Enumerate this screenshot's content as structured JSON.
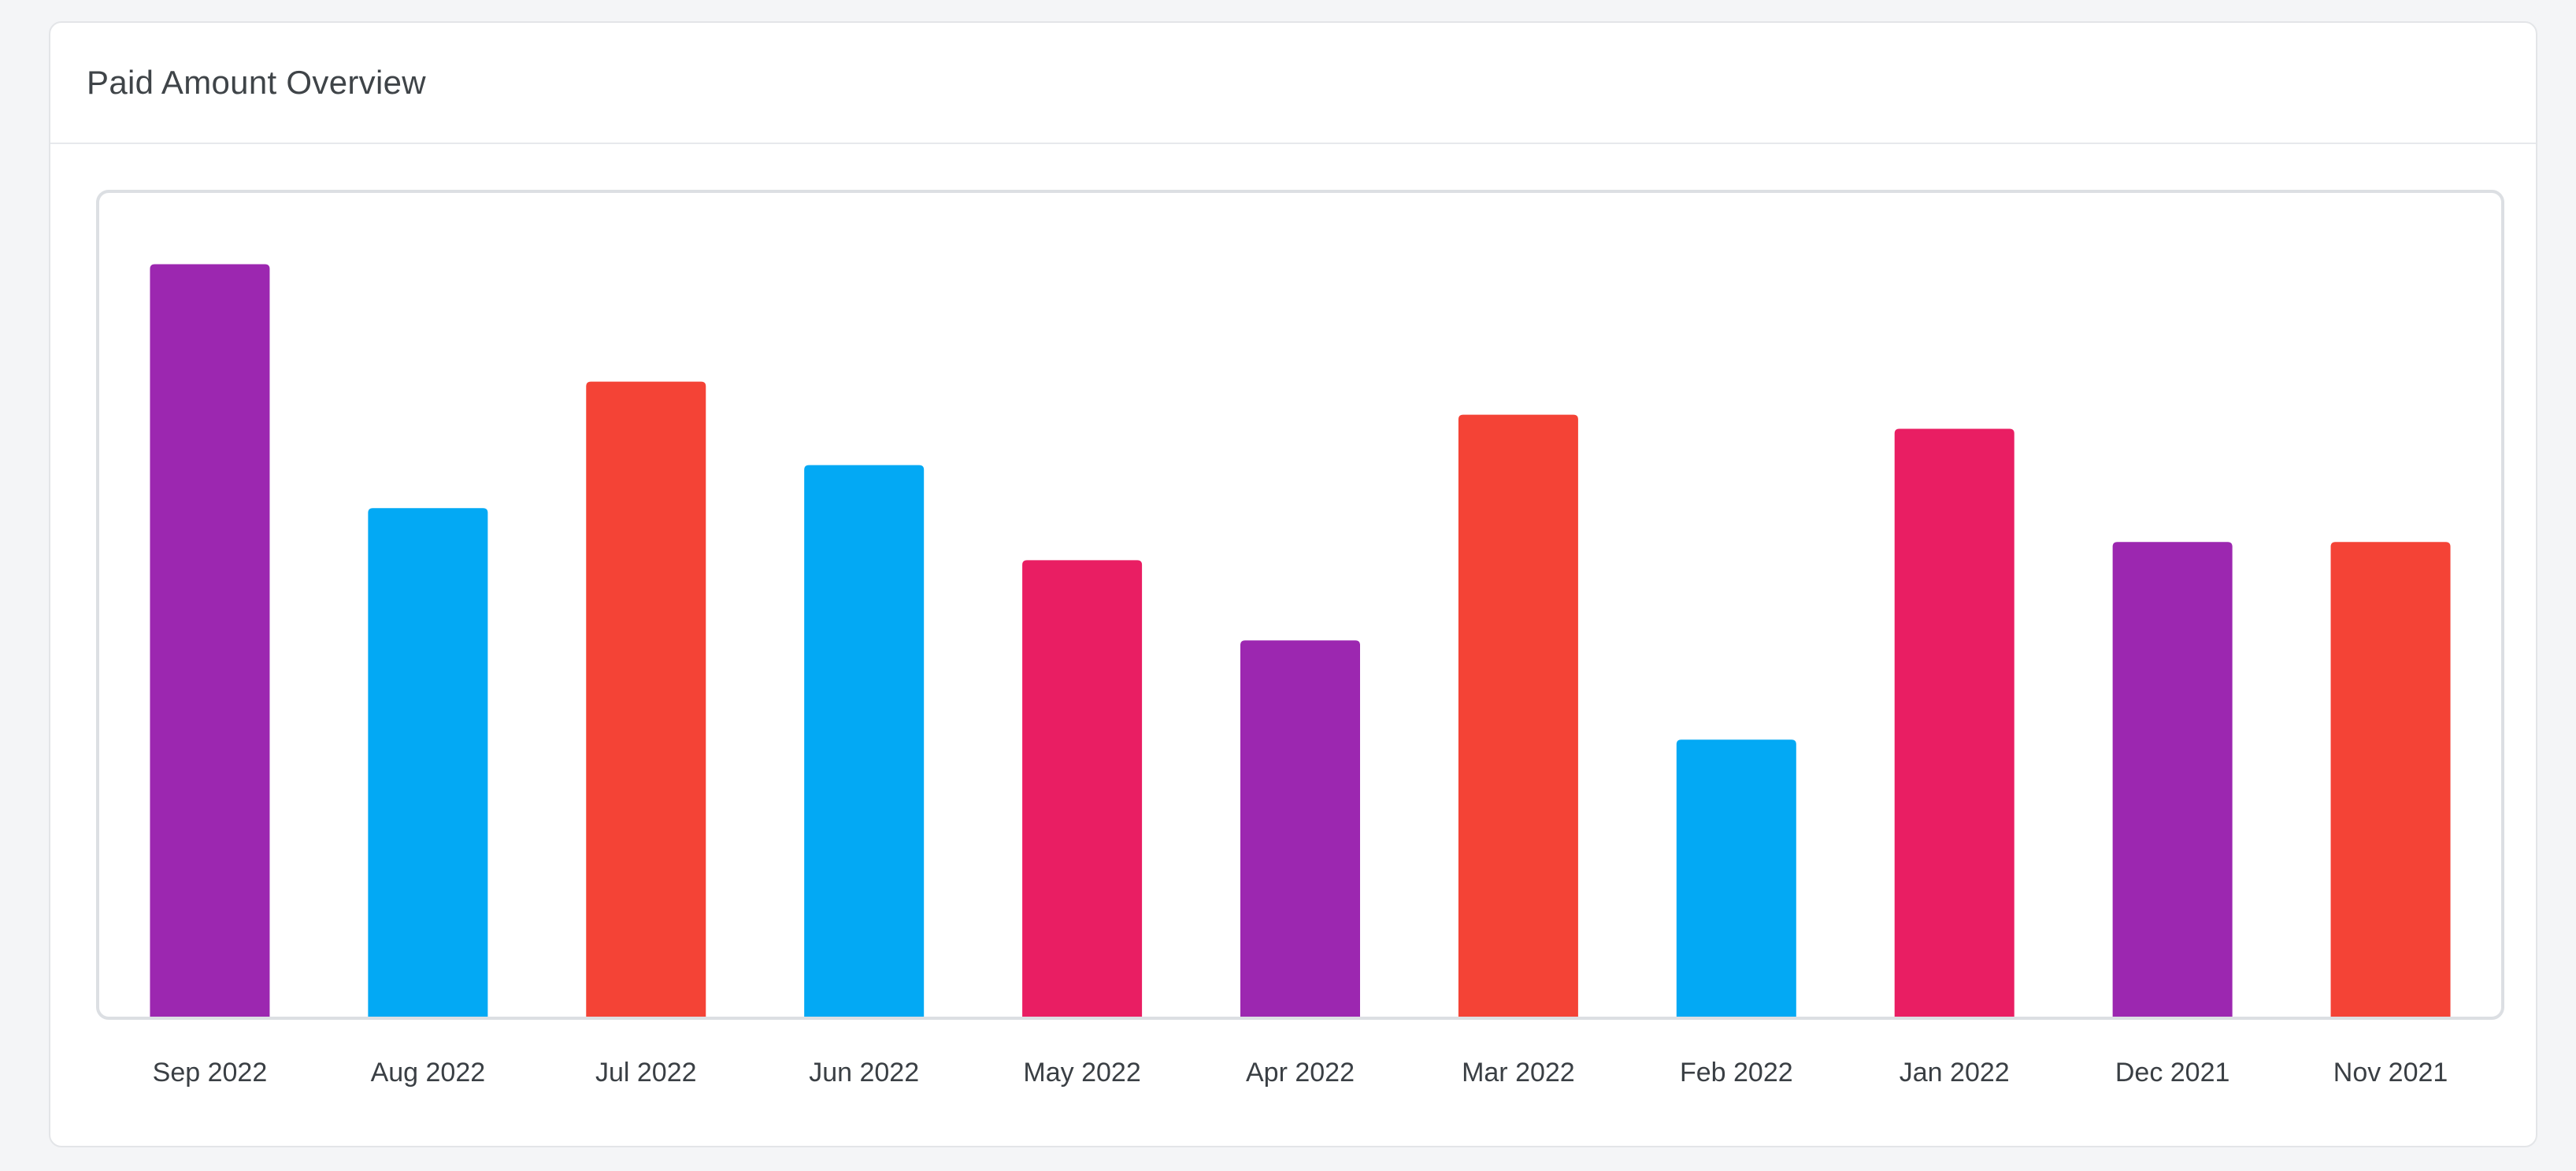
{
  "card": {
    "title": "Paid Amount Overview"
  },
  "chart_data": {
    "type": "bar",
    "title": "Paid Amount Overview",
    "categories": [
      "Sep 2022",
      "Aug 2022",
      "Jul 2022",
      "Jun 2022",
      "May 2022",
      "Apr 2022",
      "Mar 2022",
      "Feb 2022",
      "Jan 2022",
      "Dec 2021",
      "Nov 2021"
    ],
    "values": [
      91,
      61.5,
      76.8,
      66.7,
      55.2,
      45.5,
      72.8,
      33.5,
      71.1,
      57.4,
      57.4
    ],
    "bar_colors": [
      "#9c27b0",
      "#03a9f4",
      "#f44336",
      "#03a9f4",
      "#e91e63",
      "#9c27b0",
      "#f44336",
      "#03a9f4",
      "#e91e63",
      "#9c27b0",
      "#f44336"
    ],
    "xlabel": "",
    "ylabel": "",
    "ylim": [
      0,
      100
    ],
    "grid": false,
    "legend": "none"
  },
  "colors": {
    "purple": "#9c27b0",
    "blue": "#03a9f4",
    "red": "#f44336",
    "pink": "#e91e63"
  }
}
